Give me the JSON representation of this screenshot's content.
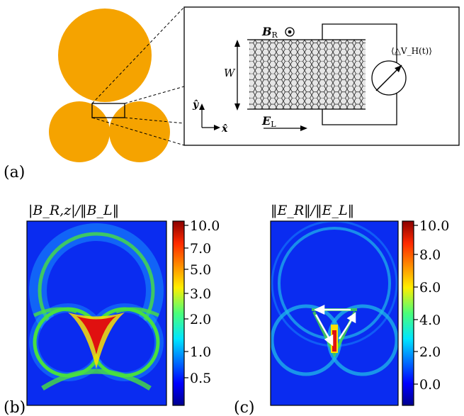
{
  "panel_a": {
    "label": "(a)",
    "field_label": "B",
    "field_label_sub": "R",
    "width_label": "W",
    "efield_label": "E",
    "efield_label_sub": "L",
    "y_axis_label": "ŷ",
    "x_axis_label": "x̂",
    "voltmeter_label": "⟨△V_H(t)⟩",
    "particle_color": "#f5a300"
  },
  "panel_b": {
    "label": "(b)",
    "title": "|B_R,z|/‖B_L‖",
    "colorbar_ticks": [
      "10.0",
      "7.0",
      "5.0",
      "3.0",
      "2.0",
      "1.0",
      "0.5"
    ]
  },
  "panel_c": {
    "label": "(c)",
    "title": "‖E_R‖/‖E_L‖",
    "colorbar_ticks": [
      "10.0",
      "8.0",
      "6.0",
      "4.0",
      "2.0",
      "0.0"
    ]
  },
  "colors": {
    "map_background": "#0a2cf0",
    "hotspot": "#e01010",
    "ring_green": "#48e040",
    "ring_cyan": "#1fb8e8"
  }
}
